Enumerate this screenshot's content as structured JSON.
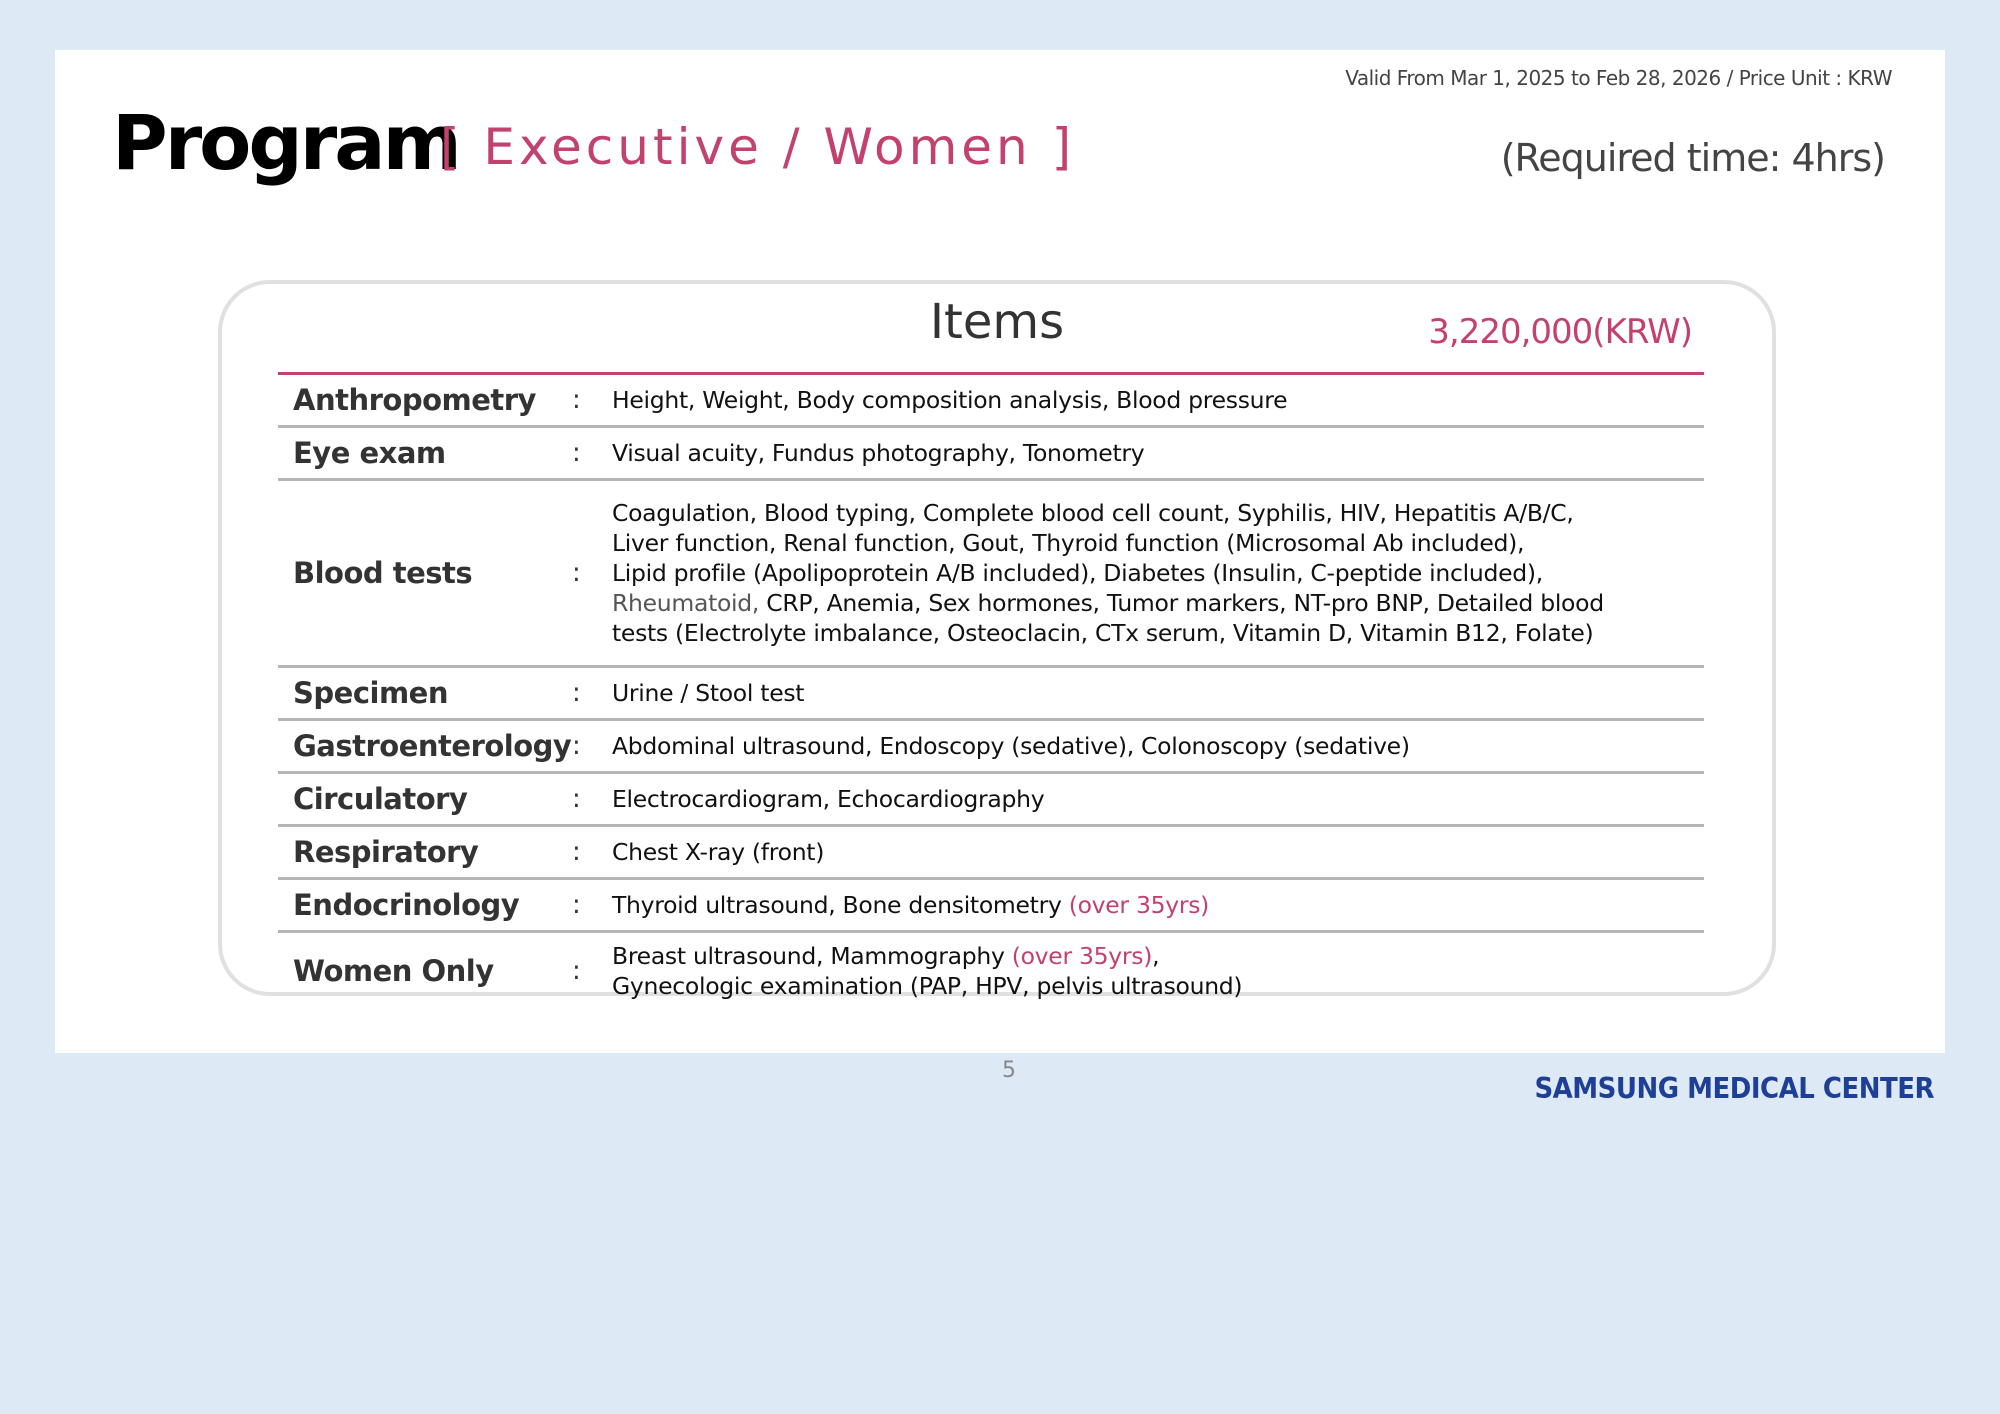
{
  "header": {
    "validity": "Valid From Mar 1, 2025 to Feb 28, 2026 / Price Unit : KRW",
    "title": "Program",
    "subtitle": "[ Executive / Women ]",
    "required_time": "(Required time: 4hrs)"
  },
  "card": {
    "title": "Items",
    "price": "3,220,000(KRW)",
    "rows": [
      {
        "label": "Anthropometry",
        "colon": ":",
        "content": "Height, Weight, Body composition analysis, Blood pressure"
      },
      {
        "label": "Eye exam",
        "colon": ":",
        "content": "Visual acuity, Fundus photography, Tonometry"
      },
      {
        "label": "Blood tests",
        "colon": ":",
        "lines": [
          "Coagulation, Blood typing, Complete blood cell count, Syphilis, HIV, Hepatitis A/B/C,",
          "Liver function, Renal function, Gout, Thyroid function (Microsomal Ab included),",
          "Lipid profile (Apolipoprotein A/B included), Diabetes (Insulin, C-peptide included),",
          "Rheumatoid,",
          " CRP, Anemia, Sex hormones, Tumor markers, NT-pro BNP, Detailed blood",
          "tests (Electrolyte imbalance, Osteoclacin, CTx serum, Vitamin D, Vitamin B12, Folate)"
        ]
      },
      {
        "label": "Specimen",
        "colon": ":",
        "content": "Urine / Stool test"
      },
      {
        "label": "Gastroenterology",
        "colon": ":",
        "content": "Abdominal ultrasound, Endoscopy (sedative), Colonoscopy (sedative)"
      },
      {
        "label": "Circulatory",
        "colon": ":",
        "content": "Electrocardiogram, Echocardiography"
      },
      {
        "label": "Respiratory",
        "colon": ":",
        "content": "Chest X-ray (front)"
      },
      {
        "label": "Endocrinology",
        "colon": ":",
        "content": "Thyroid ultrasound, Bone densitometry ",
        "note": "(over 35yrs)"
      },
      {
        "label": "Women Only",
        "colon": ":",
        "content": "Breast ultrasound, Mammography ",
        "note": "(over 35yrs)",
        "after": ",",
        "line2": "Gynecologic examination (PAP, HPV, pelvis ultrasound)"
      }
    ]
  },
  "footer": {
    "page_number": "5",
    "logo": "SAMSUNG MEDICAL CENTER"
  },
  "colors": {
    "accent": "#c2426b",
    "background": "#dde9f5",
    "logo": "#1e3f96"
  }
}
